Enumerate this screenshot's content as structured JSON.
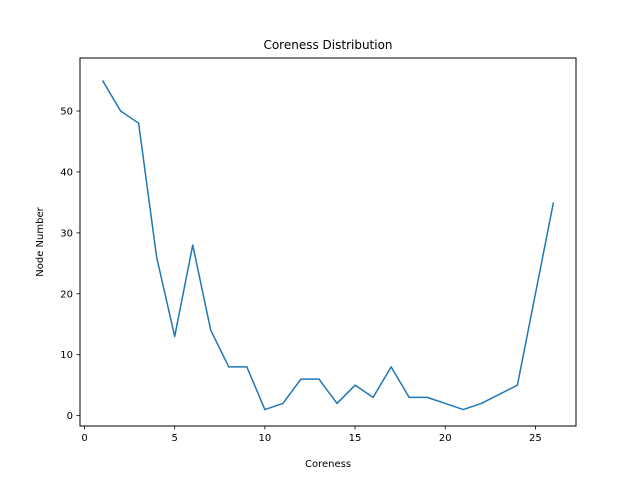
{
  "chart_data": {
    "type": "line",
    "title": "Coreness Distribution",
    "xlabel": "Coreness",
    "ylabel": "Node Number",
    "xlim": [
      -0.25,
      27.25
    ],
    "ylim": [
      -1.7,
      58.7
    ],
    "xticks": [
      0,
      5,
      10,
      15,
      20,
      25
    ],
    "yticks": [
      0,
      10,
      20,
      30,
      40,
      50
    ],
    "grid": false,
    "line_color": "#1f77b4",
    "series": [
      {
        "x": [
          1,
          2,
          3,
          4,
          5,
          6,
          7,
          8,
          9,
          10,
          11,
          12,
          13,
          14,
          15,
          16,
          17,
          18,
          19,
          20,
          21,
          22,
          23,
          24,
          25,
          26
        ],
        "values": [
          55,
          50,
          48,
          26,
          13,
          28,
          14,
          8,
          8,
          1,
          2,
          6,
          6,
          2,
          5,
          3,
          8,
          3,
          3,
          2,
          1,
          2,
          3.5,
          5,
          20,
          35
        ]
      }
    ]
  }
}
